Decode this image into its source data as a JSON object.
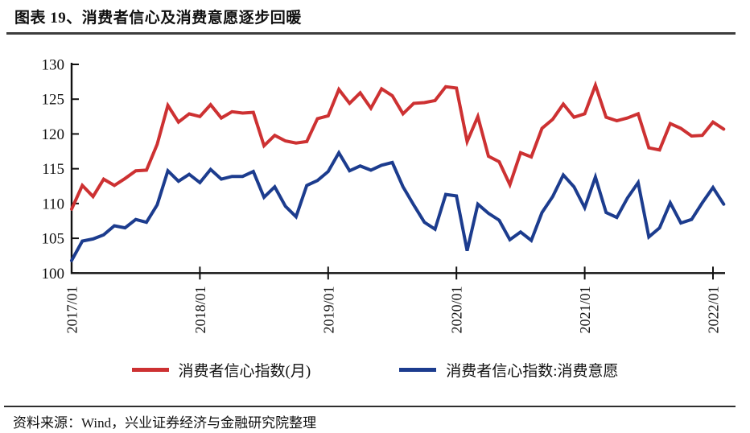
{
  "figure": {
    "title": "图表 19、消费者信心及消费意愿逐步回暖",
    "source": "资料来源：Wind，兴业证券经济与金融研究院整理"
  },
  "colors": {
    "red": "#cd3132",
    "blue": "#1c3c8e",
    "axis": "#111111",
    "rule": "#3d3d3d"
  },
  "legend": [
    {
      "label": "消费者信心指数(月)",
      "color": "#cd3132"
    },
    {
      "label": "消费者信心指数:消费意愿",
      "color": "#1c3c8e"
    }
  ],
  "chart_data": {
    "type": "line",
    "title": "消费者信心及消费意愿逐步回暖",
    "xlabel": "",
    "ylabel": "",
    "ylim": [
      100,
      130
    ],
    "y_ticks": [
      100,
      105,
      110,
      115,
      120,
      125,
      130
    ],
    "grid": false,
    "legend_position": "bottom",
    "x_tick_labels": [
      "2017/01",
      "2018/01",
      "2019/01",
      "2020/01",
      "2021/01",
      "2022/01"
    ],
    "x_tick_positions": [
      0,
      12,
      24,
      36,
      48,
      60
    ],
    "x": [
      "2017/01",
      "2017/02",
      "2017/03",
      "2017/04",
      "2017/05",
      "2017/06",
      "2017/07",
      "2017/08",
      "2017/09",
      "2017/10",
      "2017/11",
      "2017/12",
      "2018/01",
      "2018/02",
      "2018/03",
      "2018/04",
      "2018/05",
      "2018/06",
      "2018/07",
      "2018/08",
      "2018/09",
      "2018/10",
      "2018/11",
      "2018/12",
      "2019/01",
      "2019/02",
      "2019/03",
      "2019/04",
      "2019/05",
      "2019/06",
      "2019/07",
      "2019/08",
      "2019/09",
      "2019/10",
      "2019/11",
      "2019/12",
      "2020/01",
      "2020/02",
      "2020/03",
      "2020/04",
      "2020/05",
      "2020/06",
      "2020/07",
      "2020/08",
      "2020/09",
      "2020/10",
      "2020/11",
      "2020/12",
      "2021/01",
      "2021/02",
      "2021/03",
      "2021/04",
      "2021/05",
      "2021/06",
      "2021/07",
      "2021/08",
      "2021/09",
      "2021/10",
      "2021/11",
      "2021/12",
      "2022/01",
      "2022/02"
    ],
    "series": [
      {
        "name": "消费者信心指数(月)",
        "color": "#cd3132",
        "values": [
          109.2,
          112.6,
          111.0,
          113.5,
          112.6,
          113.6,
          114.7,
          114.8,
          118.5,
          124.1,
          121.7,
          122.9,
          122.5,
          124.2,
          122.3,
          123.2,
          123.0,
          123.1,
          118.3,
          119.8,
          119.0,
          118.7,
          118.9,
          122.2,
          122.6,
          126.4,
          124.4,
          125.9,
          123.7,
          126.5,
          125.5,
          122.9,
          124.4,
          124.5,
          124.8,
          126.8,
          126.6,
          118.9,
          122.5,
          116.8,
          116.0,
          112.7,
          117.3,
          116.7,
          120.8,
          122.1,
          124.3,
          122.4,
          122.9,
          127.0,
          122.4,
          121.9,
          122.3,
          122.9,
          118.0,
          117.7,
          121.5,
          120.8,
          119.7,
          119.8,
          121.7,
          120.7
        ]
      },
      {
        "name": "消费者信心指数:消费意愿",
        "color": "#1c3c8e",
        "values": [
          101.8,
          104.6,
          104.9,
          105.5,
          106.8,
          106.5,
          107.7,
          107.3,
          109.8,
          114.7,
          113.2,
          114.2,
          113.0,
          114.9,
          113.5,
          113.9,
          113.9,
          114.6,
          110.9,
          112.4,
          109.6,
          108.1,
          112.6,
          113.3,
          114.6,
          117.3,
          114.7,
          115.4,
          114.8,
          115.5,
          115.9,
          112.4,
          109.8,
          107.3,
          106.3,
          111.3,
          111.1,
          103.2,
          109.9,
          108.6,
          107.6,
          104.8,
          105.9,
          104.7,
          108.7,
          111.0,
          114.1,
          112.4,
          109.4,
          113.8,
          108.7,
          108.0,
          110.8,
          113.0,
          105.2,
          106.5,
          110.1,
          107.2,
          107.7,
          110.1,
          112.3,
          109.9
        ]
      }
    ]
  }
}
